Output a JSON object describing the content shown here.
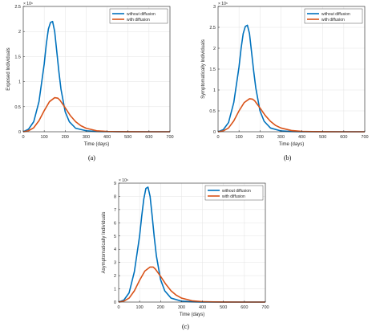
{
  "chart_data": [
    {
      "type": "line",
      "panel_caption": "(a)",
      "xlabel": "Time (days)",
      "ylabel": "Exposed Individuals",
      "exponent_label": "× 10⁶",
      "xlim": [
        0,
        700
      ],
      "ylim": [
        0,
        2.5
      ],
      "xticks": [
        0,
        100,
        200,
        300,
        400,
        500,
        600,
        700
      ],
      "yticks": [
        0,
        0.5,
        1,
        1.5,
        2,
        2.5
      ],
      "grid": true,
      "legend": "top-right",
      "series": [
        {
          "name": "without diffusion",
          "color": "#0072bd",
          "x": [
            0,
            25,
            50,
            75,
            100,
            110,
            120,
            130,
            140,
            150,
            160,
            170,
            180,
            200,
            220,
            250,
            300,
            350,
            400,
            450,
            500,
            600,
            700
          ],
          "y": [
            0,
            0.05,
            0.2,
            0.6,
            1.35,
            1.75,
            2.05,
            2.18,
            2.2,
            2.0,
            1.6,
            1.2,
            0.85,
            0.4,
            0.2,
            0.07,
            0.02,
            0.005,
            0.002,
            0.001,
            0,
            0,
            0
          ]
        },
        {
          "name": "with diffusion",
          "color": "#d95319",
          "x": [
            0,
            25,
            50,
            75,
            100,
            125,
            150,
            165,
            175,
            200,
            225,
            250,
            275,
            300,
            350,
            400,
            450,
            500,
            600,
            700
          ],
          "y": [
            0,
            0.02,
            0.08,
            0.22,
            0.42,
            0.6,
            0.68,
            0.67,
            0.63,
            0.48,
            0.32,
            0.2,
            0.12,
            0.07,
            0.02,
            0.006,
            0.002,
            0.001,
            0,
            0
          ]
        }
      ]
    },
    {
      "type": "line",
      "panel_caption": "(b)",
      "xlabel": "Time (days)",
      "ylabel": "Symptomatically Individuals",
      "exponent_label": "× 10⁶",
      "xlim": [
        0,
        700
      ],
      "ylim": [
        0,
        3
      ],
      "xticks": [
        0,
        100,
        200,
        300,
        400,
        500,
        600,
        700
      ],
      "yticks": [
        0,
        0.5,
        1,
        1.5,
        2,
        2.5,
        3
      ],
      "grid": true,
      "legend": "top-right",
      "series": [
        {
          "name": "without diffusion",
          "color": "#0072bd",
          "x": [
            0,
            25,
            50,
            75,
            100,
            110,
            120,
            130,
            140,
            150,
            160,
            170,
            180,
            200,
            220,
            250,
            300,
            350,
            400,
            450,
            500,
            600,
            700
          ],
          "y": [
            0,
            0.05,
            0.22,
            0.7,
            1.55,
            2.0,
            2.35,
            2.52,
            2.55,
            2.35,
            1.9,
            1.45,
            1.05,
            0.5,
            0.25,
            0.09,
            0.02,
            0.006,
            0.002,
            0.001,
            0,
            0,
            0
          ]
        },
        {
          "name": "with diffusion",
          "color": "#d95319",
          "x": [
            0,
            25,
            50,
            75,
            100,
            125,
            150,
            165,
            175,
            200,
            225,
            250,
            275,
            300,
            350,
            400,
            450,
            500,
            600,
            700
          ],
          "y": [
            0,
            0.02,
            0.09,
            0.26,
            0.5,
            0.7,
            0.79,
            0.78,
            0.74,
            0.57,
            0.39,
            0.25,
            0.15,
            0.09,
            0.03,
            0.008,
            0.003,
            0.001,
            0,
            0
          ]
        }
      ]
    },
    {
      "type": "line",
      "panel_caption": "(c)",
      "xlabel": "Time (days)",
      "ylabel": "Asymptomatically Individuals",
      "exponent_label": "× 10⁶",
      "xlim": [
        0,
        700
      ],
      "ylim": [
        0,
        9
      ],
      "xticks": [
        0,
        100,
        200,
        300,
        400,
        500,
        600,
        700
      ],
      "yticks": [
        0,
        1,
        2,
        3,
        4,
        5,
        6,
        7,
        8,
        9
      ],
      "grid": true,
      "legend": "top-right",
      "series": [
        {
          "name": "without diffusion",
          "color": "#0072bd",
          "x": [
            0,
            25,
            50,
            75,
            100,
            110,
            120,
            130,
            140,
            150,
            160,
            170,
            180,
            200,
            220,
            250,
            300,
            350,
            400,
            450,
            500,
            600,
            700
          ],
          "y": [
            0,
            0.15,
            0.7,
            2.3,
            5.0,
            6.5,
            7.8,
            8.6,
            8.7,
            8.0,
            6.5,
            4.9,
            3.5,
            1.7,
            0.85,
            0.3,
            0.07,
            0.02,
            0.006,
            0.002,
            0,
            0,
            0
          ]
        },
        {
          "name": "with diffusion",
          "color": "#d95319",
          "x": [
            0,
            25,
            50,
            75,
            100,
            125,
            150,
            165,
            175,
            200,
            225,
            250,
            275,
            300,
            350,
            400,
            450,
            500,
            600,
            700
          ],
          "y": [
            0,
            0.07,
            0.3,
            0.85,
            1.65,
            2.35,
            2.65,
            2.65,
            2.5,
            1.95,
            1.35,
            0.85,
            0.52,
            0.3,
            0.1,
            0.03,
            0.01,
            0.003,
            0,
            0
          ]
        }
      ]
    }
  ]
}
